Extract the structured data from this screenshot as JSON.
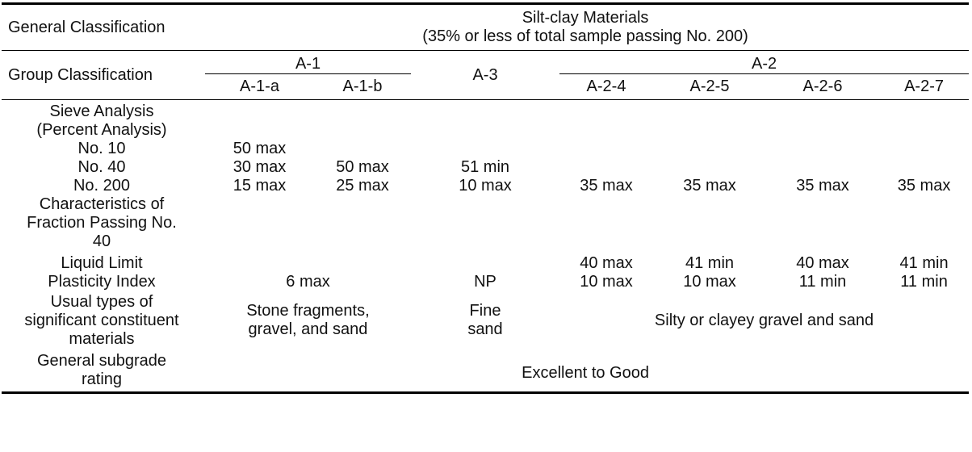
{
  "header": {
    "general_classification_label": "General Classification",
    "silt_clay_title_line1": "Silt-clay Materials",
    "silt_clay_title_line2": "(35% or less of total sample passing No. 200)",
    "group_classification_label": "Group Classification",
    "group_a1": "A-1",
    "group_a3": "A-3",
    "group_a2": "A-2",
    "sub_groups": [
      "A-1-a",
      "A-1-b",
      "A-2-4",
      "A-2-5",
      "A-2-6",
      "A-2-7"
    ]
  },
  "rows": {
    "sieve_analysis_line1": "Sieve Analysis",
    "sieve_analysis_line2": "(Percent Analysis)",
    "no10": {
      "label": "No. 10",
      "a1a": "50 max"
    },
    "no40": {
      "label": "No. 40",
      "a1a": "30 max",
      "a1b": "50 max",
      "a3": "51 min"
    },
    "no200": {
      "label": "No. 200",
      "a1a": "15 max",
      "a1b": "25 max",
      "a3": "10 max",
      "a24": "35 max",
      "a25": "35 max",
      "a26": "35 max",
      "a27": "35 max"
    },
    "characteristics_line1": "Characteristics of",
    "characteristics_line2": "Fraction Passing No.",
    "characteristics_line3": "40",
    "liquid_limit": {
      "label": "Liquid Limit",
      "a24": "40 max",
      "a25": "41 min",
      "a26": "40 max",
      "a27": "41 min"
    },
    "plasticity_index": {
      "label": "Plasticity Index",
      "a1": "6 max",
      "a3": "NP",
      "a24": "10 max",
      "a25": "10 max",
      "a26": "11 min",
      "a27": "11 min"
    },
    "usual_types": {
      "label_line1": "Usual types of",
      "label_line2": "significant constituent",
      "label_line3": "materials",
      "a1_line1": "Stone fragments,",
      "a1_line2": "gravel, and sand",
      "a3_line1": "Fine",
      "a3_line2": "sand",
      "a2": "Silty or clayey gravel and sand"
    },
    "subgrade_rating": {
      "label_line1": "General subgrade",
      "label_line2": "rating",
      "value": "Excellent to Good"
    }
  }
}
